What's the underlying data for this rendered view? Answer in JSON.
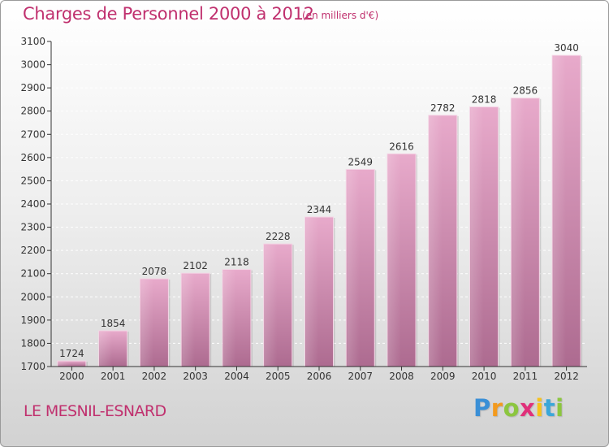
{
  "header": {
    "title": "Charges de Personnel 2000 à 2012",
    "subtitle": "(en milliers d'€)"
  },
  "footer": {
    "place": "LE MESNIL-ESNARD",
    "logo_text": "Proxiti"
  },
  "colors": {
    "title": "#c0306e",
    "bar_top": "#e8aacb",
    "bar_bottom": "#ad6b90",
    "axis": "#333333",
    "grid": "#ffffff"
  },
  "chart_data": {
    "type": "bar",
    "title": "Charges de Personnel 2000 à 2012",
    "subtitle": "(en milliers d'€)",
    "categories": [
      "2000",
      "2001",
      "2002",
      "2003",
      "2004",
      "2005",
      "2006",
      "2007",
      "2008",
      "2009",
      "2010",
      "2011",
      "2012"
    ],
    "values": [
      1724,
      1854,
      2078,
      2102,
      2118,
      2228,
      2344,
      2549,
      2616,
      2782,
      2818,
      2856,
      3040
    ],
    "ylim": [
      1700,
      3100
    ],
    "yticks": [
      1700,
      1800,
      1900,
      2000,
      2100,
      2200,
      2300,
      2400,
      2500,
      2600,
      2700,
      2800,
      2900,
      3000,
      3100
    ],
    "grid": true,
    "xlabel": "",
    "ylabel": ""
  }
}
